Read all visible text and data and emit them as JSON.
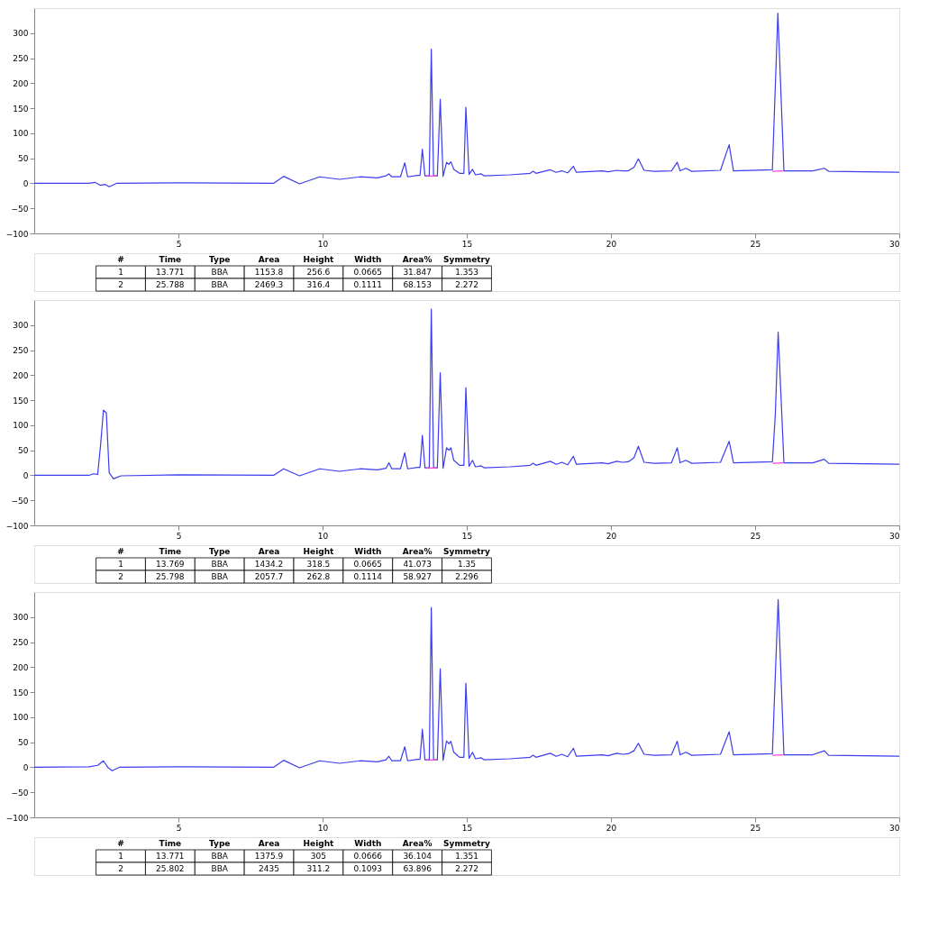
{
  "chart_data": [
    {
      "type": "line",
      "xlim": [
        0,
        30
      ],
      "xticks": [
        5,
        10,
        15,
        20,
        25,
        30
      ],
      "ylim": [
        -100,
        350
      ],
      "yticks": [
        -100,
        -50,
        0,
        50,
        100,
        150,
        200,
        250,
        300
      ],
      "grid": false,
      "series": [
        {
          "color": "#3c3cf0",
          "x": [
            0,
            1.9,
            2.1,
            2.3,
            2.45,
            2.6,
            2.85,
            5,
            8.3,
            8.65,
            9.2,
            9.9,
            10.6,
            11.3,
            11.9,
            12.2,
            12.3,
            12.4,
            12.7,
            12.85,
            12.95,
            13.3,
            13.38,
            13.46,
            13.55,
            13.7,
            13.77,
            13.85,
            13.98,
            14.08,
            14.18,
            14.3,
            14.38,
            14.45,
            14.55,
            14.75,
            14.9,
            14.97,
            15.08,
            15.2,
            15.3,
            15.5,
            15.6,
            16.5,
            17.2,
            17.3,
            17.4,
            17.9,
            18.1,
            18.3,
            18.5,
            18.7,
            18.8,
            19.7,
            19.9,
            20.2,
            20.4,
            20.6,
            20.8,
            20.95,
            21.15,
            21.5,
            22.1,
            22.3,
            22.4,
            22.6,
            22.8,
            23.8,
            24.1,
            24.25,
            25.6,
            25.79,
            26.0,
            27.0,
            27.4,
            27.55,
            30
          ],
          "values": [
            0,
            0,
            2,
            -4,
            -2,
            -7,
            0,
            1,
            0,
            14,
            -1,
            13,
            8,
            13,
            11,
            15,
            19,
            13,
            13,
            41,
            13,
            16,
            16,
            68,
            15,
            15,
            268,
            15,
            15,
            168,
            14,
            42,
            38,
            43,
            28,
            20,
            20,
            152,
            18,
            28,
            17,
            19,
            15,
            17,
            20,
            24,
            20,
            27,
            22,
            25,
            21,
            34,
            22,
            25,
            23,
            26,
            25,
            25,
            32,
            49,
            26,
            24,
            25,
            42,
            25,
            30,
            24,
            26,
            77,
            25,
            27,
            340,
            25,
            25,
            30,
            24,
            22
          ]
        },
        {
          "color": "#ff44cc",
          "x": [
            13.6,
            13.95
          ],
          "values": [
            14,
            15
          ]
        },
        {
          "color": "#ff44cc",
          "x": [
            25.6,
            26.0
          ],
          "values": [
            24,
            25
          ]
        }
      ],
      "annotations": [
        "#",
        "Time",
        "Type",
        "Area",
        "Height",
        "Width",
        "Area%",
        "Symmetry",
        "1",
        "13.771",
        "BBA",
        "1153.8",
        "256.6",
        "0.0665",
        "31.847",
        "1.353",
        "2",
        "25.788",
        "BBA",
        "2469.3",
        "316.4",
        "0.1111",
        "68.153",
        "2.272"
      ]
    },
    {
      "type": "line",
      "xlim": [
        0,
        30
      ],
      "xticks": [
        5,
        10,
        15,
        20,
        25,
        30
      ],
      "ylim": [
        -100,
        350
      ],
      "yticks": [
        -100,
        -50,
        0,
        50,
        100,
        150,
        200,
        250,
        300
      ],
      "grid": false,
      "series": [
        {
          "color": "#3c3cf0",
          "x": [
            0,
            1.9,
            2.05,
            2.2,
            2.3,
            2.4,
            2.5,
            2.6,
            2.75,
            3.0,
            5,
            8.3,
            8.65,
            9.2,
            9.9,
            10.6,
            11.3,
            11.9,
            12.2,
            12.3,
            12.4,
            12.7,
            12.85,
            12.95,
            13.3,
            13.38,
            13.46,
            13.55,
            13.7,
            13.77,
            13.85,
            13.98,
            14.08,
            14.18,
            14.3,
            14.38,
            14.45,
            14.55,
            14.75,
            14.9,
            14.97,
            15.08,
            15.2,
            15.3,
            15.5,
            15.6,
            16.5,
            17.2,
            17.3,
            17.4,
            17.9,
            18.1,
            18.3,
            18.5,
            18.7,
            18.8,
            19.7,
            19.9,
            20.2,
            20.4,
            20.6,
            20.8,
            20.95,
            21.15,
            21.5,
            22.1,
            22.3,
            22.4,
            22.6,
            22.8,
            23.8,
            24.1,
            24.25,
            25.6,
            25.7,
            25.8,
            26.0,
            27.0,
            27.4,
            27.55,
            30
          ],
          "values": [
            0,
            0,
            3,
            2,
            60,
            130,
            125,
            5,
            -7,
            -1,
            1,
            0,
            13,
            -1,
            13,
            8,
            13,
            11,
            14,
            25,
            13,
            13,
            45,
            13,
            16,
            16,
            80,
            15,
            15,
            332,
            15,
            15,
            205,
            14,
            55,
            50,
            55,
            30,
            20,
            20,
            175,
            18,
            30,
            17,
            19,
            15,
            17,
            20,
            24,
            20,
            28,
            22,
            26,
            21,
            38,
            22,
            25,
            23,
            28,
            26,
            27,
            35,
            58,
            26,
            24,
            25,
            55,
            25,
            30,
            24,
            26,
            68,
            25,
            27,
            120,
            286,
            25,
            25,
            32,
            24,
            22
          ]
        },
        {
          "color": "#ff44cc",
          "x": [
            13.6,
            13.95
          ],
          "values": [
            14,
            15
          ]
        },
        {
          "color": "#ff44cc",
          "x": [
            25.6,
            26.0
          ],
          "values": [
            24,
            25
          ]
        }
      ],
      "annotations": [
        "#",
        "Time",
        "Type",
        "Area",
        "Height",
        "Width",
        "Area%",
        "Symmetry",
        "1",
        "13.769",
        "BBA",
        "1434.2",
        "318.5",
        "0.0665",
        "41.073",
        "1.35",
        "2",
        "25.798",
        "BBA",
        "2057.7",
        "262.8",
        "0.1114",
        "58.927",
        "2.296"
      ]
    },
    {
      "type": "line",
      "xlim": [
        0,
        30
      ],
      "xticks": [
        5,
        10,
        15,
        20,
        25,
        30
      ],
      "ylim": [
        -100,
        350
      ],
      "yticks": [
        -100,
        -50,
        0,
        50,
        100,
        150,
        200,
        250,
        300
      ],
      "grid": false,
      "series": [
        {
          "color": "#3c3cf0",
          "x": [
            0,
            1.9,
            2.2,
            2.4,
            2.55,
            2.7,
            2.95,
            5,
            8.3,
            8.65,
            9.2,
            9.9,
            10.6,
            11.3,
            11.9,
            12.2,
            12.3,
            12.4,
            12.7,
            12.85,
            12.95,
            13.3,
            13.38,
            13.46,
            13.55,
            13.7,
            13.77,
            13.85,
            13.98,
            14.08,
            14.18,
            14.3,
            14.38,
            14.45,
            14.55,
            14.75,
            14.9,
            14.97,
            15.08,
            15.2,
            15.3,
            15.5,
            15.6,
            16.5,
            17.2,
            17.3,
            17.4,
            17.9,
            18.1,
            18.3,
            18.5,
            18.7,
            18.8,
            19.7,
            19.9,
            20.2,
            20.4,
            20.6,
            20.8,
            20.95,
            21.15,
            21.5,
            22.1,
            22.3,
            22.4,
            22.6,
            22.8,
            23.8,
            24.1,
            24.25,
            25.6,
            25.8,
            26.0,
            27.0,
            27.4,
            27.55,
            30
          ],
          "values": [
            0,
            1,
            4,
            13,
            0,
            -7,
            0,
            1,
            0,
            14,
            -1,
            13,
            8,
            13,
            11,
            15,
            22,
            13,
            13,
            41,
            13,
            16,
            16,
            76,
            15,
            15,
            319,
            15,
            15,
            197,
            14,
            53,
            47,
            52,
            30,
            20,
            20,
            168,
            18,
            30,
            17,
            19,
            15,
            17,
            20,
            24,
            20,
            28,
            22,
            26,
            21,
            38,
            22,
            25,
            23,
            28,
            26,
            27,
            33,
            48,
            26,
            24,
            25,
            52,
            25,
            30,
            24,
            26,
            71,
            25,
            27,
            335,
            25,
            25,
            33,
            24,
            22
          ]
        },
        {
          "color": "#ff44cc",
          "x": [
            13.6,
            13.95
          ],
          "values": [
            14,
            15
          ]
        },
        {
          "color": "#ff44cc",
          "x": [
            25.6,
            26.0
          ],
          "values": [
            24,
            25
          ]
        }
      ],
      "annotations": [
        "#",
        "Time",
        "Type",
        "Area",
        "Height",
        "Width",
        "Area%",
        "Symmetry",
        "1",
        "13.771",
        "BBA",
        "1375.9",
        "305",
        "0.0666",
        "36.104",
        "1.351",
        "2",
        "25.802",
        "BBA",
        "2435",
        "311.2",
        "0.1093",
        "63.896",
        "2.272"
      ]
    }
  ]
}
